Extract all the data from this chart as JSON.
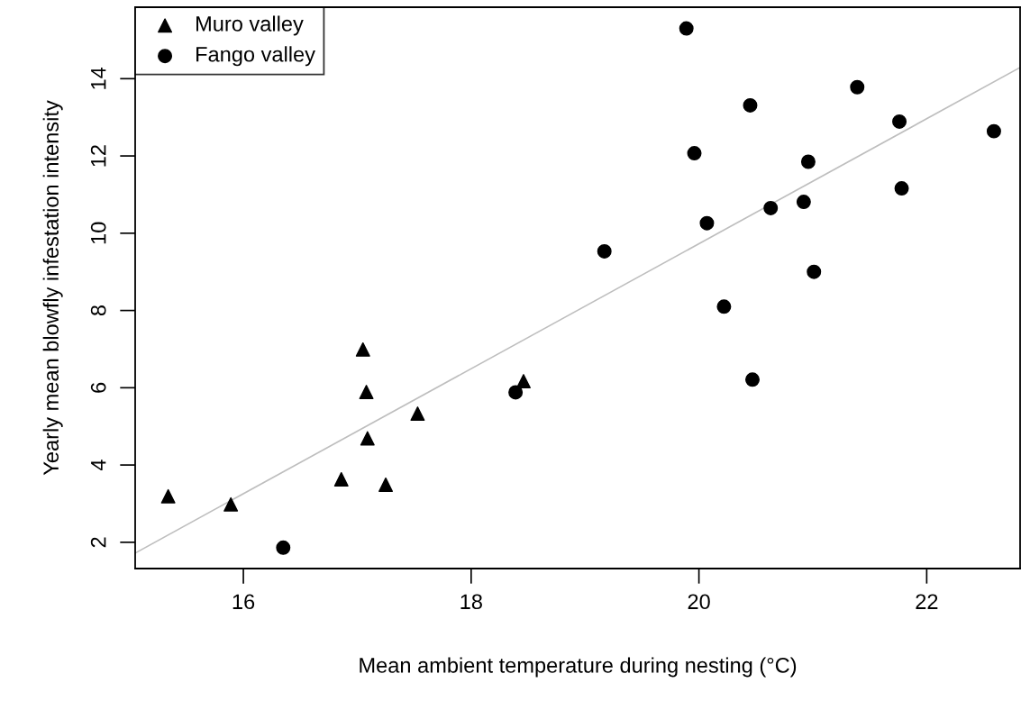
{
  "chart_data": {
    "type": "scatter",
    "xlabel": "Mean ambient temperature during nesting (°C)",
    "ylabel": "Yearly mean blowfly infestation intensity",
    "xlim": [
      15.05,
      22.82
    ],
    "ylim": [
      1.32,
      15.85
    ],
    "xticks": [
      16,
      18,
      20,
      22
    ],
    "yticks": [
      2,
      4,
      6,
      8,
      10,
      12,
      14
    ],
    "grid": false,
    "legend": "top left",
    "series": [
      {
        "name": "Muro valley",
        "color": "#000000",
        "marker": "triangle",
        "x": [
          15.34,
          15.89,
          16.86,
          17.05,
          17.08,
          17.09,
          17.25,
          17.53,
          18.46
        ],
        "values": [
          3.19,
          2.98,
          3.63,
          6.99,
          5.89,
          4.69,
          3.49,
          5.33,
          6.17
        ]
      },
      {
        "name": "Fango valley",
        "color": "#000000",
        "marker": "circle",
        "x": [
          16.35,
          18.39,
          19.89,
          20.45,
          21.39,
          21.76,
          22.59,
          19.96,
          20.96,
          21.78,
          20.63,
          20.92,
          20.07,
          19.17,
          21.01,
          20.22,
          20.47
        ],
        "values": [
          1.86,
          5.88,
          15.3,
          13.31,
          13.78,
          12.89,
          12.64,
          12.07,
          11.85,
          11.16,
          10.65,
          10.81,
          10.26,
          9.53,
          9.0,
          8.1,
          6.21
        ]
      },
      {
        "type": "line",
        "color": "#bebebe",
        "marker": "none",
        "x": [
          15.05,
          22.82
        ],
        "values": [
          1.72,
          14.29
        ]
      }
    ]
  }
}
